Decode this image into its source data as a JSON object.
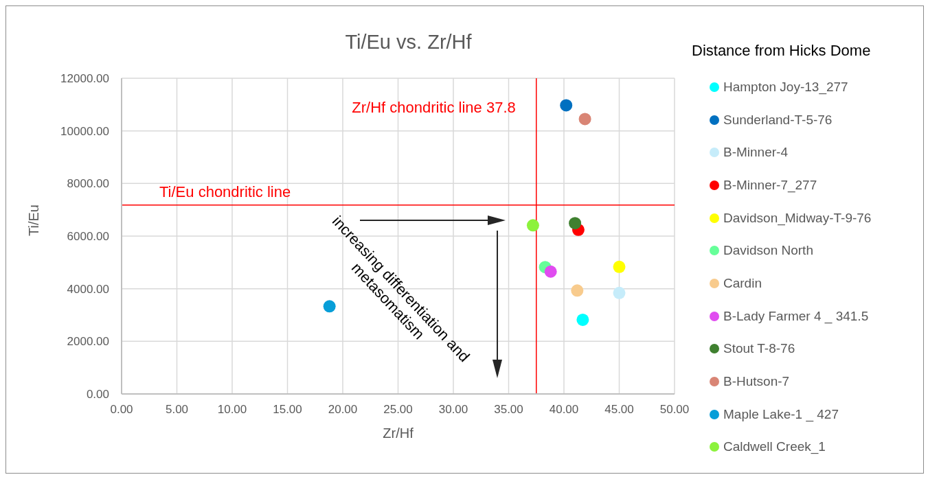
{
  "chart_data": {
    "type": "scatter",
    "title": "Ti/Eu vs. Zr/Hf",
    "xlabel": "Zr/Hf",
    "ylabel": "Ti/Eu",
    "legend_title": "Distance from Hicks Dome",
    "xlim": [
      0,
      50
    ],
    "ylim": [
      0,
      12000
    ],
    "xticks": [
      {
        "value": 0,
        "label": "0.00"
      },
      {
        "value": 5,
        "label": "5.00"
      },
      {
        "value": 10,
        "label": "10.00"
      },
      {
        "value": 15,
        "label": "15.00"
      },
      {
        "value": 20,
        "label": "20.00"
      },
      {
        "value": 25,
        "label": "25.00"
      },
      {
        "value": 30,
        "label": "30.00"
      },
      {
        "value": 35,
        "label": "35.00"
      },
      {
        "value": 40,
        "label": "40.00"
      },
      {
        "value": 45,
        "label": "45.00"
      },
      {
        "value": 50,
        "label": "50.00"
      }
    ],
    "yticks": [
      {
        "value": 0,
        "label": "0.00"
      },
      {
        "value": 2000,
        "label": "2000.00"
      },
      {
        "value": 4000,
        "label": "4000.00"
      },
      {
        "value": 6000,
        "label": "6000.00"
      },
      {
        "value": 8000,
        "label": "8000.00"
      },
      {
        "value": 10000,
        "label": "10000.00"
      },
      {
        "value": 12000,
        "label": "12000.00"
      }
    ],
    "grid": true,
    "legend": "right",
    "marker": "circle",
    "series": [
      {
        "name": "Hampton Joy-13_277",
        "color": "#00ffff",
        "x": [
          41.7
        ],
        "values": [
          2820
        ]
      },
      {
        "name": "Sunderland-T-5-76",
        "color": "#0070c0",
        "x": [
          40.2
        ],
        "values": [
          10970
        ]
      },
      {
        "name": "B-Minner-4",
        "color": "#c6ecfa",
        "x": [
          45.0
        ],
        "values": [
          3840
        ]
      },
      {
        "name": "B-Minner-7_277",
        "color": "#ff0000",
        "x": [
          41.3
        ],
        "values": [
          6240
        ]
      },
      {
        "name": "Davidson_Midway-T-9-76",
        "color": "#ffff00",
        "x": [
          45.0
        ],
        "values": [
          4830
        ]
      },
      {
        "name": "Davidson North",
        "color": "#66ff99",
        "x": [
          38.3
        ],
        "values": [
          4820
        ]
      },
      {
        "name": "Cardin",
        "color": "#f8cb8d",
        "x": [
          41.2
        ],
        "values": [
          3930
        ]
      },
      {
        "name": "B-Lady Farmer 4 _ 341.5",
        "color": "#e04cf0",
        "x": [
          38.8
        ],
        "values": [
          4650
        ]
      },
      {
        "name": "Stout T-8-76",
        "color": "#3f8030",
        "x": [
          41.0
        ],
        "values": [
          6490
        ]
      },
      {
        "name": "B-Hutson-7",
        "color": "#d98575",
        "x": [
          41.9
        ],
        "values": [
          10450
        ]
      },
      {
        "name": "Maple Lake-1 _ 427",
        "color": "#079ed8",
        "x": [
          18.8
        ],
        "values": [
          3330
        ]
      },
      {
        "name": "Caldwell Creek_1",
        "color": "#8cf23c",
        "x": [
          37.2
        ],
        "values": [
          6410
        ]
      }
    ],
    "ref_lines": [
      {
        "axis": "x",
        "value": 37.5,
        "label": "Zr/Hf chondritic line 37.8",
        "color": "#ff0000"
      },
      {
        "axis": "y",
        "value": 7180,
        "label": "Ti/Eu chondritic line",
        "color": "#ff0000"
      }
    ],
    "annotations": [
      "increasing differentiation and metasomatism"
    ]
  }
}
